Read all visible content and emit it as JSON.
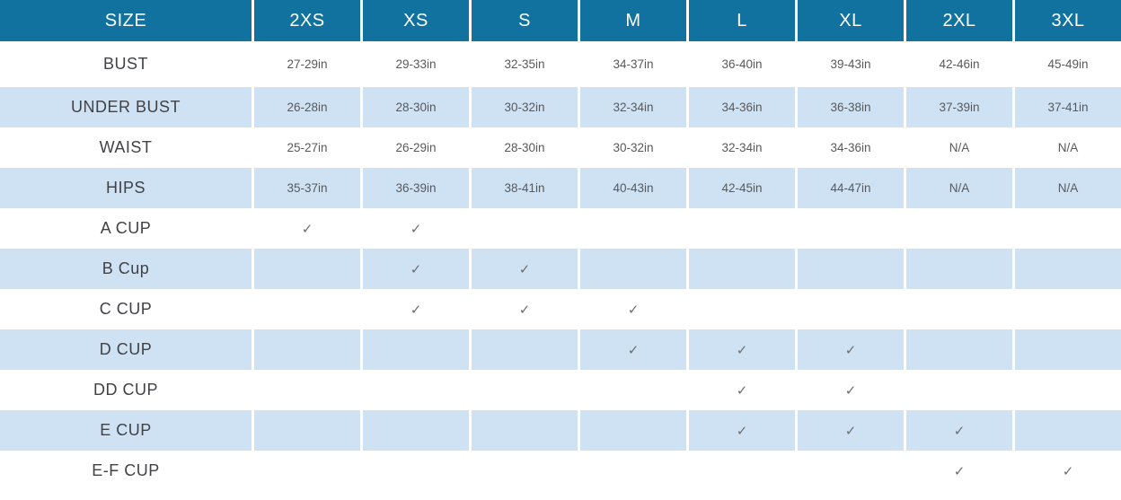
{
  "colors": {
    "header_bg": "#11719f",
    "header_text": "#ffffff",
    "alt_row_bg": "#cfe2f3",
    "label_text": "#414246",
    "value_text": "#58595b",
    "check_color": "#6d6e70"
  },
  "table": {
    "header": {
      "label": "SIZE",
      "sizes": [
        "2XS",
        "XS",
        "S",
        "M",
        "L",
        "XL",
        "2XL",
        "3XL"
      ]
    },
    "rows": [
      {
        "label": "BUST",
        "values": [
          "27-29in",
          "29-33in",
          "32-35in",
          "34-37in",
          "36-40in",
          "39-43in",
          "42-46in",
          "45-49in"
        ]
      },
      {
        "label": "UNDER BUST",
        "values": [
          "26-28in",
          "28-30in",
          "30-32in",
          "32-34in",
          "34-36in",
          "36-38in",
          "37-39in",
          "37-41in"
        ]
      },
      {
        "label": "WAIST",
        "values": [
          "25-27in",
          "26-29in",
          "28-30in",
          "30-32in",
          "32-34in",
          "34-36in",
          "N/A",
          "N/A"
        ]
      },
      {
        "label": "HIPS",
        "values": [
          "35-37in",
          "36-39in",
          "38-41in",
          "40-43in",
          "42-45in",
          "44-47in",
          "N/A",
          "N/A"
        ]
      },
      {
        "label": "A CUP",
        "values": [
          "✓",
          "✓",
          "",
          "",
          "",
          "",
          "",
          ""
        ]
      },
      {
        "label": "B Cup",
        "values": [
          "",
          "✓",
          "✓",
          "",
          "",
          "",
          "",
          ""
        ]
      },
      {
        "label": "C CUP",
        "values": [
          "",
          "✓",
          "✓",
          "✓",
          "",
          "",
          "",
          ""
        ]
      },
      {
        "label": "D CUP",
        "values": [
          "",
          "",
          "",
          "✓",
          "✓",
          "✓",
          "",
          ""
        ]
      },
      {
        "label": "DD CUP",
        "values": [
          "",
          "",
          "",
          "",
          "✓",
          "✓",
          "",
          ""
        ]
      },
      {
        "label": "E CUP",
        "values": [
          "",
          "",
          "",
          "",
          "✓",
          "✓",
          "✓",
          ""
        ]
      },
      {
        "label": "E-F CUP",
        "values": [
          "",
          "",
          "",
          "",
          "",
          "",
          "✓",
          "✓"
        ]
      }
    ]
  }
}
